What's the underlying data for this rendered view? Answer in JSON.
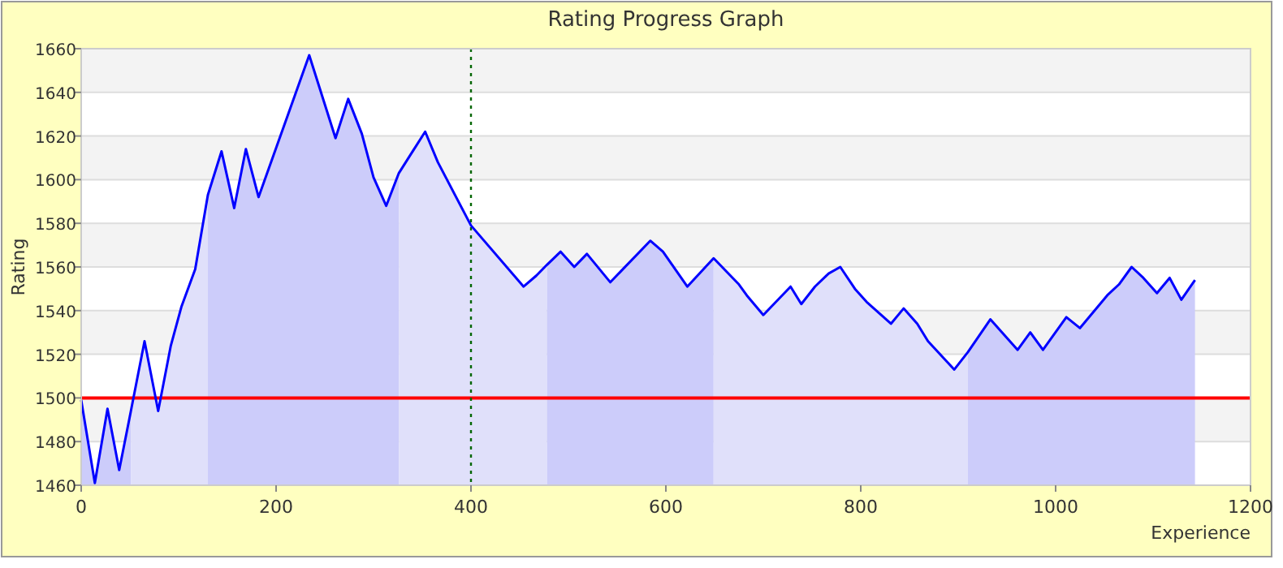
{
  "chart_data": {
    "type": "area",
    "title": "Rating Progress Graph",
    "xlabel": "Experience",
    "ylabel": "Rating",
    "xlim": [
      0,
      1200
    ],
    "xticks": [
      0,
      200,
      400,
      600,
      800,
      1000,
      1200
    ],
    "ylim": [
      1460,
      1660
    ],
    "yticks": [
      1460,
      1480,
      1500,
      1520,
      1540,
      1560,
      1580,
      1600,
      1620,
      1640,
      1660
    ],
    "grid": "y",
    "series": [
      {
        "color": "#ccccfa",
        "x": [
          0,
          14,
          27,
          39,
          51
        ],
        "values": [
          1499,
          1461,
          1495,
          1467,
          1494
        ]
      },
      {
        "color": "#e0e0fa",
        "x": [
          51,
          65,
          79,
          92,
          103,
          117,
          130
        ],
        "values": [
          1494,
          1526,
          1494,
          1524,
          1542,
          1559,
          1593
        ]
      },
      {
        "color": "#ccccfa",
        "x": [
          130,
          144,
          157,
          169,
          182,
          234,
          261,
          274,
          288,
          300,
          313,
          326
        ],
        "values": [
          1593,
          1613,
          1587,
          1614,
          1592,
          1657,
          1619,
          1637,
          1621,
          1601,
          1588,
          1603
        ]
      },
      {
        "color": "#e0e0fa",
        "x": [
          326,
          353,
          366,
          400,
          454,
          467,
          478
        ],
        "values": [
          1603,
          1622,
          1608,
          1579,
          1551,
          1556,
          1561
        ]
      },
      {
        "color": "#ccccfa",
        "x": [
          478,
          492,
          506,
          519,
          543,
          584,
          597,
          622,
          649
        ],
        "values": [
          1561,
          1567,
          1560,
          1566,
          1553,
          1572,
          1567,
          1551,
          1564
        ]
      },
      {
        "color": "#e0e0fa",
        "x": [
          649,
          675,
          683,
          700,
          728,
          739,
          753,
          767,
          779,
          794,
          806,
          831,
          844,
          858,
          869,
          896,
          910
        ],
        "values": [
          1564,
          1552,
          1547,
          1538,
          1551,
          1543,
          1551,
          1557,
          1560,
          1550,
          1544,
          1534,
          1541,
          1534,
          1526,
          1513,
          1521
        ]
      },
      {
        "color": "#ccccfa",
        "x": [
          910,
          933,
          961,
          974,
          987,
          1011,
          1025,
          1053,
          1065,
          1078,
          1090,
          1104,
          1117,
          1129,
          1143
        ],
        "values": [
          1521,
          1536,
          1522,
          1530,
          1522,
          1537,
          1532,
          1547,
          1552,
          1560,
          1555,
          1548,
          1555,
          1545,
          1554
        ]
      },
      {
        "type": "line",
        "color": "#0000ff",
        "x": [
          0,
          14,
          27,
          39,
          51,
          65,
          79,
          92,
          103,
          117,
          130,
          144,
          157,
          169,
          182,
          234,
          261,
          274,
          288,
          300,
          313,
          326,
          353,
          366,
          400,
          454,
          467,
          478,
          492,
          506,
          519,
          543,
          584,
          597,
          622,
          649,
          675,
          683,
          700,
          728,
          739,
          753,
          767,
          779,
          794,
          806,
          831,
          844,
          858,
          869,
          896,
          910,
          933,
          961,
          974,
          987,
          1011,
          1025,
          1053,
          1065,
          1078,
          1090,
          1104,
          1117,
          1129,
          1143
        ],
        "values": [
          1499,
          1461,
          1495,
          1467,
          1494,
          1526,
          1494,
          1524,
          1542,
          1559,
          1593,
          1613,
          1587,
          1614,
          1592,
          1657,
          1619,
          1637,
          1621,
          1601,
          1588,
          1603,
          1622,
          1608,
          1579,
          1551,
          1556,
          1561,
          1567,
          1560,
          1566,
          1553,
          1572,
          1567,
          1551,
          1564,
          1552,
          1547,
          1538,
          1551,
          1543,
          1551,
          1557,
          1560,
          1550,
          1544,
          1534,
          1541,
          1534,
          1526,
          1513,
          1521,
          1536,
          1522,
          1530,
          1522,
          1537,
          1532,
          1547,
          1552,
          1560,
          1555,
          1548,
          1555,
          1545,
          1554
        ]
      }
    ],
    "ref_lines": [
      {
        "axis": "y",
        "value": 1500,
        "color": "#ff0000",
        "line_style": "solid"
      },
      {
        "axis": "x",
        "value": 400,
        "color": "#006600",
        "line_style": "dotted"
      }
    ]
  }
}
